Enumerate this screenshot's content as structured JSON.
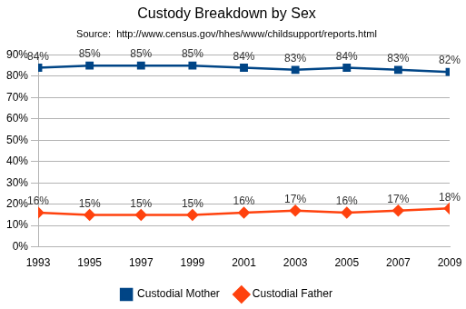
{
  "chart_data": {
    "type": "line",
    "title": "Custody Breakdown by Sex",
    "subtitle": "Source:  http://www.census.gov/hhes/www/childsupport/reports.html",
    "categories": [
      "1993",
      "1995",
      "1997",
      "1999",
      "2001",
      "2003",
      "2005",
      "2007",
      "2009"
    ],
    "series": [
      {
        "name": "Custodial Mother",
        "color": "#004586",
        "marker": "square",
        "values": [
          84,
          85,
          85,
          85,
          84,
          83,
          84,
          83,
          82
        ],
        "value_labels": [
          "84%",
          "85%",
          "85%",
          "85%",
          "84%",
          "83%",
          "84%",
          "83%",
          "82%"
        ]
      },
      {
        "name": "Custodial Father",
        "color": "#ff420e",
        "marker": "diamond",
        "values": [
          16,
          15,
          15,
          15,
          16,
          17,
          16,
          17,
          18
        ],
        "value_labels": [
          "16%",
          "15%",
          "15%",
          "15%",
          "16%",
          "17%",
          "16%",
          "17%",
          "18%"
        ]
      }
    ],
    "ylim": [
      0,
      90
    ],
    "yticks": [
      {
        "value": 0,
        "label": "0%"
      },
      {
        "value": 10,
        "label": "10%"
      },
      {
        "value": 20,
        "label": "20%"
      },
      {
        "value": 30,
        "label": "30%"
      },
      {
        "value": 40,
        "label": "40%"
      },
      {
        "value": 50,
        "label": "50%"
      },
      {
        "value": 60,
        "label": "60%"
      },
      {
        "value": 70,
        "label": "70%"
      },
      {
        "value": 80,
        "label": "80%"
      },
      {
        "value": 90,
        "label": "90%"
      }
    ],
    "grid": true,
    "legend": "bottom",
    "data_labels": true
  }
}
